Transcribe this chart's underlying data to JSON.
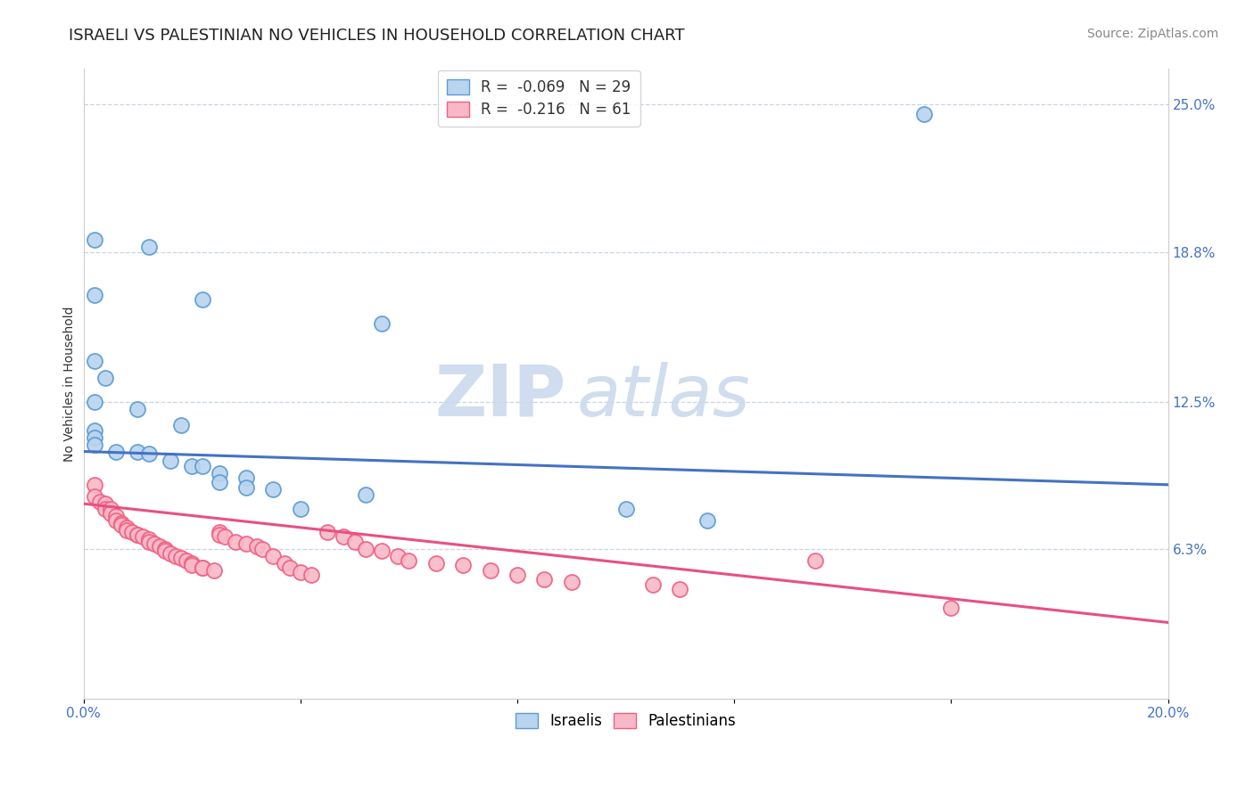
{
  "title": "ISRAELI VS PALESTINIAN NO VEHICLES IN HOUSEHOLD CORRELATION CHART",
  "source": "Source: ZipAtlas.com",
  "ylabel": "No Vehicles in Household",
  "xlim": [
    0.0,
    0.2
  ],
  "ylim": [
    0.0,
    0.265
  ],
  "ytick_labels_right": [
    "25.0%",
    "18.8%",
    "12.5%",
    "6.3%"
  ],
  "ytick_vals_right": [
    0.25,
    0.188,
    0.125,
    0.063
  ],
  "legend_R_israeli": "-0.069",
  "legend_N_israeli": "29",
  "legend_R_palestinian": "-0.216",
  "legend_N_palestinian": "61",
  "israeli_color": "#b8d4ee",
  "palestinian_color": "#f8b8c8",
  "israeli_edge_color": "#5b9bd5",
  "palestinian_edge_color": "#f06080",
  "israeli_line_color": "#4472c4",
  "palestinian_line_color": "#e85080",
  "israeli_points": [
    [
      0.002,
      0.193
    ],
    [
      0.012,
      0.19
    ],
    [
      0.002,
      0.17
    ],
    [
      0.022,
      0.168
    ],
    [
      0.055,
      0.158
    ],
    [
      0.002,
      0.142
    ],
    [
      0.004,
      0.135
    ],
    [
      0.002,
      0.125
    ],
    [
      0.01,
      0.122
    ],
    [
      0.018,
      0.115
    ],
    [
      0.002,
      0.113
    ],
    [
      0.002,
      0.11
    ],
    [
      0.002,
      0.107
    ],
    [
      0.006,
      0.104
    ],
    [
      0.01,
      0.104
    ],
    [
      0.012,
      0.103
    ],
    [
      0.016,
      0.1
    ],
    [
      0.02,
      0.098
    ],
    [
      0.022,
      0.098
    ],
    [
      0.025,
      0.095
    ],
    [
      0.03,
      0.093
    ],
    [
      0.025,
      0.091
    ],
    [
      0.03,
      0.089
    ],
    [
      0.035,
      0.088
    ],
    [
      0.052,
      0.086
    ],
    [
      0.04,
      0.08
    ],
    [
      0.1,
      0.08
    ],
    [
      0.155,
      0.246
    ],
    [
      0.115,
      0.075
    ]
  ],
  "palestinian_points": [
    [
      0.002,
      0.09
    ],
    [
      0.002,
      0.085
    ],
    [
      0.003,
      0.083
    ],
    [
      0.004,
      0.082
    ],
    [
      0.004,
      0.08
    ],
    [
      0.005,
      0.08
    ],
    [
      0.005,
      0.078
    ],
    [
      0.006,
      0.077
    ],
    [
      0.006,
      0.075
    ],
    [
      0.007,
      0.074
    ],
    [
      0.007,
      0.073
    ],
    [
      0.008,
      0.072
    ],
    [
      0.008,
      0.071
    ],
    [
      0.009,
      0.07
    ],
    [
      0.01,
      0.069
    ],
    [
      0.01,
      0.069
    ],
    [
      0.011,
      0.068
    ],
    [
      0.012,
      0.067
    ],
    [
      0.012,
      0.066
    ],
    [
      0.013,
      0.065
    ],
    [
      0.014,
      0.064
    ],
    [
      0.015,
      0.063
    ],
    [
      0.015,
      0.062
    ],
    [
      0.016,
      0.061
    ],
    [
      0.017,
      0.06
    ],
    [
      0.018,
      0.059
    ],
    [
      0.019,
      0.058
    ],
    [
      0.02,
      0.057
    ],
    [
      0.02,
      0.056
    ],
    [
      0.022,
      0.055
    ],
    [
      0.022,
      0.055
    ],
    [
      0.024,
      0.054
    ],
    [
      0.025,
      0.07
    ],
    [
      0.025,
      0.069
    ],
    [
      0.026,
      0.068
    ],
    [
      0.028,
      0.066
    ],
    [
      0.03,
      0.065
    ],
    [
      0.032,
      0.064
    ],
    [
      0.033,
      0.063
    ],
    [
      0.035,
      0.06
    ],
    [
      0.037,
      0.057
    ],
    [
      0.038,
      0.055
    ],
    [
      0.04,
      0.053
    ],
    [
      0.042,
      0.052
    ],
    [
      0.045,
      0.07
    ],
    [
      0.048,
      0.068
    ],
    [
      0.05,
      0.066
    ],
    [
      0.052,
      0.063
    ],
    [
      0.055,
      0.062
    ],
    [
      0.058,
      0.06
    ],
    [
      0.06,
      0.058
    ],
    [
      0.065,
      0.057
    ],
    [
      0.07,
      0.056
    ],
    [
      0.075,
      0.054
    ],
    [
      0.08,
      0.052
    ],
    [
      0.085,
      0.05
    ],
    [
      0.09,
      0.049
    ],
    [
      0.105,
      0.048
    ],
    [
      0.11,
      0.046
    ],
    [
      0.135,
      0.058
    ],
    [
      0.16,
      0.038
    ]
  ],
  "isr_line": [
    0.104,
    0.09
  ],
  "pal_line": [
    0.082,
    0.032
  ],
  "watermark_zip": "ZIP",
  "watermark_atlas": "atlas",
  "background_color": "#ffffff",
  "grid_color": "#c8d4e8",
  "title_fontsize": 13,
  "axis_label_fontsize": 10,
  "tick_fontsize": 11,
  "legend_fontsize": 12,
  "source_fontsize": 10
}
